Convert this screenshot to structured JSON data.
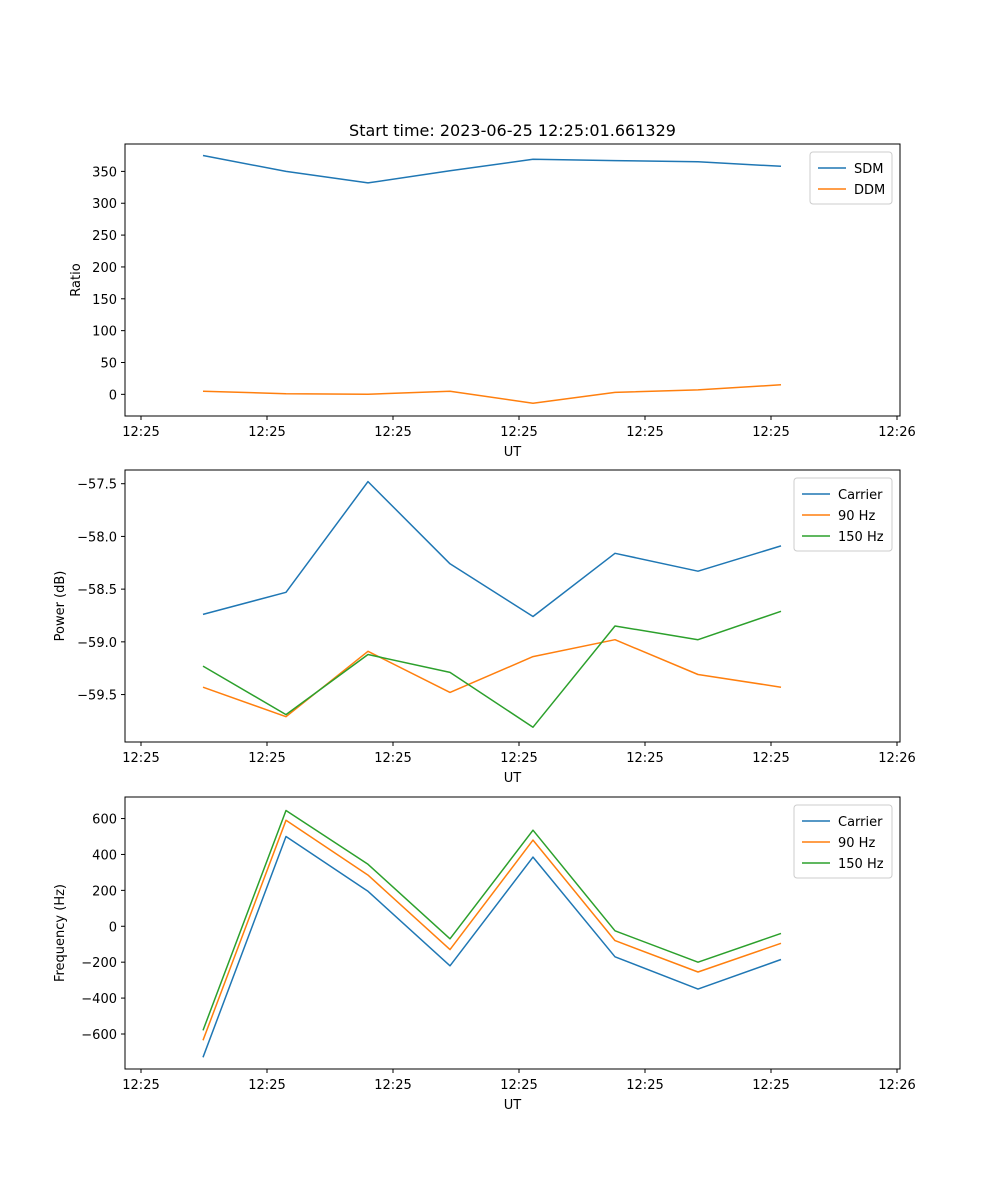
{
  "chart_data": [
    {
      "type": "line",
      "title": "Start time: 2023-06-25 12:25:01.661329",
      "xlabel": "UT",
      "ylabel": "Ratio",
      "x_tick_labels": [
        "12:25",
        "12:25",
        "12:25",
        "12:25",
        "12:25",
        "12:25",
        "12:25",
        "12:26"
      ],
      "y_ticks": [
        0,
        50,
        100,
        150,
        200,
        250,
        300,
        350
      ],
      "ylim": [
        -34,
        393
      ],
      "legend": "upper right",
      "series": [
        {
          "name": "SDM",
          "color": "#1f77b4",
          "values": [
            375,
            350,
            332,
            351,
            369,
            367,
            365,
            358
          ]
        },
        {
          "name": "DDM",
          "color": "#ff7f0e",
          "values": [
            5,
            1,
            0,
            5,
            -14,
            3,
            7,
            15
          ]
        }
      ]
    },
    {
      "type": "line",
      "title": "",
      "xlabel": "UT",
      "ylabel": "Power (dB)",
      "x_tick_labels": [
        "12:25",
        "12:25",
        "12:25",
        "12:25",
        "12:25",
        "12:25",
        "12:25",
        "12:26"
      ],
      "y_ticks": [
        -59.5,
        -59.0,
        -58.5,
        -58.0,
        -57.5
      ],
      "y_tick_labels": [
        "−59.5",
        "−59.0",
        "−58.5",
        "−58.0",
        "−57.5"
      ],
      "ylim": [
        -59.95,
        -57.37
      ],
      "legend": "upper right",
      "series": [
        {
          "name": "Carrier",
          "color": "#1f77b4",
          "values": [
            -58.74,
            -58.53,
            -57.48,
            -58.26,
            -58.76,
            -58.16,
            -58.33,
            -58.09
          ]
        },
        {
          "name": "90 Hz",
          "color": "#ff7f0e",
          "values": [
            -59.43,
            -59.71,
            -59.09,
            -59.48,
            -59.14,
            -58.98,
            -59.31,
            -59.43
          ]
        },
        {
          "name": "150 Hz",
          "color": "#2ca02c",
          "values": [
            -59.23,
            -59.69,
            -59.12,
            -59.29,
            -59.81,
            -58.85,
            -58.98,
            -58.71
          ]
        }
      ]
    },
    {
      "type": "line",
      "title": "",
      "xlabel": "UT",
      "ylabel": "Frequency (Hz)",
      "x_tick_labels": [
        "12:25",
        "12:25",
        "12:25",
        "12:25",
        "12:25",
        "12:25",
        "12:25",
        "12:26"
      ],
      "y_ticks": [
        -600,
        -400,
        -200,
        0,
        200,
        400,
        600
      ],
      "y_tick_labels": [
        "−600",
        "−400",
        "−200",
        "0",
        "200",
        "400",
        "600"
      ],
      "ylim": [
        -795,
        720
      ],
      "legend": "upper right",
      "series": [
        {
          "name": "Carrier",
          "color": "#1f77b4",
          "values": [
            -730,
            500,
            195,
            -220,
            385,
            -170,
            -350,
            -185
          ]
        },
        {
          "name": "90 Hz",
          "color": "#ff7f0e",
          "values": [
            -635,
            590,
            285,
            -130,
            480,
            -80,
            -255,
            -95
          ]
        },
        {
          "name": "150 Hz",
          "color": "#2ca02c",
          "values": [
            -580,
            645,
            345,
            -70,
            535,
            -25,
            -200,
            -40
          ]
        }
      ]
    }
  ]
}
